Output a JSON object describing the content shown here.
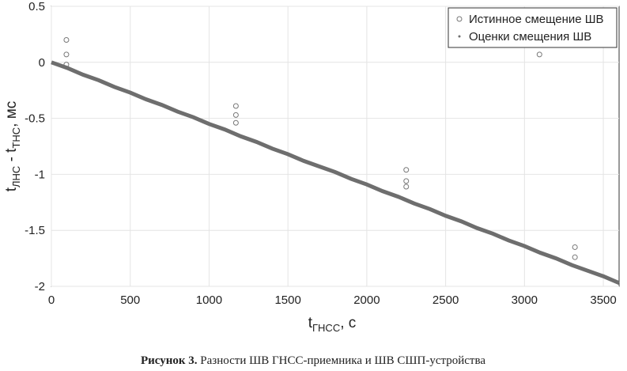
{
  "chart_data": {
    "type": "scatter",
    "xlabel": [
      "t",
      "ГНСС",
      ", с"
    ],
    "ylabel": [
      "t",
      "ЛНС",
      " - t",
      "ТНС",
      ", мс"
    ],
    "xlim": [
      0,
      3600
    ],
    "ylim": [
      -2,
      0.5
    ],
    "xticks": [
      0,
      500,
      1000,
      1500,
      2000,
      2500,
      3000,
      3500
    ],
    "yticks": [
      0.5,
      0,
      -0.5,
      -1,
      -1.5,
      -2
    ],
    "grid": true,
    "legend": "upper right",
    "series": [
      {
        "name": "Истинное смещение ШВ",
        "marker": "circle",
        "color": "#777777",
        "x": [
          95,
          95,
          95,
          1170,
          1170,
          1170,
          2250,
          2250,
          2250,
          3095,
          3320,
          3320
        ],
        "values": [
          0.2,
          0.07,
          -0.02,
          -0.39,
          -0.47,
          -0.54,
          -0.96,
          -1.06,
          -1.11,
          0.07,
          -1.65,
          -1.74
        ]
      },
      {
        "name": "Оценки смещения ШВ",
        "marker": "dot",
        "color": "#6e6e6e",
        "x": [
          0,
          100,
          200,
          300,
          400,
          500,
          600,
          700,
          800,
          900,
          1000,
          1100,
          1200,
          1300,
          1400,
          1500,
          1600,
          1700,
          1800,
          1900,
          2000,
          2100,
          2200,
          2300,
          2400,
          2500,
          2600,
          2700,
          2800,
          2900,
          3000,
          3100,
          3200,
          3300,
          3400,
          3500,
          3600
        ],
        "values": [
          0,
          -0.05,
          -0.11,
          -0.16,
          -0.22,
          -0.27,
          -0.33,
          -0.38,
          -0.44,
          -0.49,
          -0.55,
          -0.6,
          -0.66,
          -0.71,
          -0.77,
          -0.82,
          -0.88,
          -0.93,
          -0.98,
          -1.04,
          -1.09,
          -1.15,
          -1.2,
          -1.26,
          -1.31,
          -1.37,
          -1.42,
          -1.48,
          -1.53,
          -1.59,
          -1.64,
          -1.7,
          -1.75,
          -1.81,
          -1.86,
          -1.91,
          -1.97
        ]
      }
    ]
  },
  "caption": {
    "label": "Рисунок 3.",
    "text": " Разности ШВ ГНСС-приемника и ШВ СШП-устройства"
  }
}
